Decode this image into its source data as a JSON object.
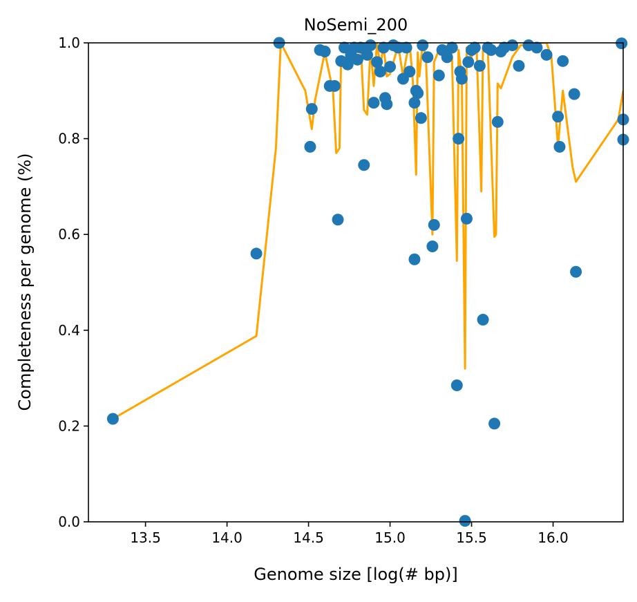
{
  "chart_data": {
    "type": "scatter",
    "title": "NoSemi_200",
    "xlabel": "Genome size [log(# bp)]",
    "ylabel": "Completeness per genome (%)",
    "xlim": [
      13.15,
      16.43
    ],
    "ylim": [
      0.0,
      1.0
    ],
    "x_ticks": [
      13.5,
      14.0,
      14.5,
      15.0,
      15.5,
      16.0
    ],
    "x_tick_labels": [
      "13.5",
      "14.0",
      "14.5",
      "15.0",
      "15.5",
      "16.0"
    ],
    "y_ticks": [
      0.0,
      0.2,
      0.4,
      0.6,
      0.8,
      1.0
    ],
    "y_tick_labels": [
      "0.0",
      "0.2",
      "0.4",
      "0.6",
      "0.8",
      "1.0"
    ],
    "grid": false,
    "legend": "none",
    "colors": {
      "points": "#1f77b4",
      "line": "#ffa500"
    },
    "points": [
      [
        13.3,
        0.215
      ],
      [
        14.18,
        0.56
      ],
      [
        14.32,
        1.0
      ],
      [
        14.51,
        0.783
      ],
      [
        14.52,
        0.862
      ],
      [
        14.57,
        0.985
      ],
      [
        14.6,
        0.982
      ],
      [
        14.63,
        0.91
      ],
      [
        14.66,
        0.91
      ],
      [
        14.68,
        0.631
      ],
      [
        14.7,
        0.962
      ],
      [
        14.72,
        0.99
      ],
      [
        14.74,
        0.955
      ],
      [
        14.76,
        0.975
      ],
      [
        14.78,
        0.99
      ],
      [
        14.8,
        0.965
      ],
      [
        14.82,
        0.99
      ],
      [
        14.84,
        0.745
      ],
      [
        14.86,
        0.975
      ],
      [
        14.88,
        0.995
      ],
      [
        14.9,
        0.875
      ],
      [
        14.92,
        0.96
      ],
      [
        14.94,
        0.94
      ],
      [
        14.96,
        0.99
      ],
      [
        14.97,
        0.885
      ],
      [
        14.98,
        0.872
      ],
      [
        15.0,
        0.95
      ],
      [
        15.02,
        0.995
      ],
      [
        15.05,
        0.99
      ],
      [
        15.08,
        0.925
      ],
      [
        15.1,
        0.99
      ],
      [
        15.12,
        0.94
      ],
      [
        15.15,
        0.548
      ],
      [
        15.15,
        0.875
      ],
      [
        15.16,
        0.9
      ],
      [
        15.17,
        0.895
      ],
      [
        15.19,
        0.843
      ],
      [
        15.2,
        0.995
      ],
      [
        15.23,
        0.97
      ],
      [
        15.26,
        0.575
      ],
      [
        15.27,
        0.62
      ],
      [
        15.3,
        0.932
      ],
      [
        15.32,
        0.985
      ],
      [
        15.35,
        0.97
      ],
      [
        15.38,
        0.99
      ],
      [
        15.41,
        0.285
      ],
      [
        15.42,
        0.8
      ],
      [
        15.43,
        0.94
      ],
      [
        15.44,
        0.925
      ],
      [
        15.46,
        0.002
      ],
      [
        15.47,
        0.633
      ],
      [
        15.48,
        0.96
      ],
      [
        15.5,
        0.985
      ],
      [
        15.52,
        0.99
      ],
      [
        15.55,
        0.952
      ],
      [
        15.57,
        0.422
      ],
      [
        15.6,
        0.99
      ],
      [
        15.62,
        0.985
      ],
      [
        15.64,
        0.205
      ],
      [
        15.66,
        0.835
      ],
      [
        15.68,
        0.982
      ],
      [
        15.7,
        0.99
      ],
      [
        15.75,
        0.995
      ],
      [
        15.79,
        0.952
      ],
      [
        15.85,
        0.995
      ],
      [
        15.9,
        0.99
      ],
      [
        15.96,
        0.975
      ],
      [
        16.03,
        0.846
      ],
      [
        16.04,
        0.783
      ],
      [
        16.06,
        0.962
      ],
      [
        16.13,
        0.893
      ],
      [
        16.14,
        0.522
      ],
      [
        16.42,
        0.999
      ],
      [
        16.43,
        0.84
      ],
      [
        16.43,
        0.798
      ]
    ],
    "line": [
      [
        13.3,
        0.215
      ],
      [
        14.18,
        0.388
      ],
      [
        14.3,
        0.78
      ],
      [
        14.33,
        1.0
      ],
      [
        14.48,
        0.9
      ],
      [
        14.52,
        0.82
      ],
      [
        14.54,
        0.88
      ],
      [
        14.6,
        0.98
      ],
      [
        14.65,
        0.9
      ],
      [
        14.67,
        0.77
      ],
      [
        14.69,
        0.78
      ],
      [
        14.7,
        0.97
      ],
      [
        14.72,
        0.95
      ],
      [
        14.74,
        0.99
      ],
      [
        14.76,
        0.98
      ],
      [
        14.78,
        1.0
      ],
      [
        14.8,
        0.98
      ],
      [
        14.82,
        0.995
      ],
      [
        14.84,
        0.86
      ],
      [
        14.86,
        0.85
      ],
      [
        14.88,
        0.99
      ],
      [
        14.9,
        0.91
      ],
      [
        14.92,
        1.0
      ],
      [
        14.94,
        0.95
      ],
      [
        14.96,
        0.995
      ],
      [
        14.98,
        0.93
      ],
      [
        15.0,
        0.935
      ],
      [
        15.05,
        0.995
      ],
      [
        15.08,
        0.93
      ],
      [
        15.1,
        0.97
      ],
      [
        15.12,
        1.0
      ],
      [
        15.14,
        0.92
      ],
      [
        15.16,
        0.725
      ],
      [
        15.17,
        0.98
      ],
      [
        15.18,
        0.93
      ],
      [
        15.2,
        1.0
      ],
      [
        15.22,
        0.97
      ],
      [
        15.26,
        0.6
      ],
      [
        15.27,
        0.96
      ],
      [
        15.3,
        0.985
      ],
      [
        15.33,
        0.97
      ],
      [
        15.36,
        1.0
      ],
      [
        15.38,
        0.97
      ],
      [
        15.41,
        0.545
      ],
      [
        15.42,
        0.985
      ],
      [
        15.44,
        0.93
      ],
      [
        15.46,
        0.32
      ],
      [
        15.47,
        0.99
      ],
      [
        15.5,
        0.97
      ],
      [
        15.53,
        1.0
      ],
      [
        15.56,
        0.69
      ],
      [
        15.57,
        0.99
      ],
      [
        15.6,
        0.985
      ],
      [
        15.64,
        0.595
      ],
      [
        15.65,
        0.6
      ],
      [
        15.66,
        0.915
      ],
      [
        15.68,
        0.905
      ],
      [
        15.75,
        0.97
      ],
      [
        15.8,
        0.995
      ],
      [
        15.85,
        0.995
      ],
      [
        15.9,
        1.0
      ],
      [
        15.96,
        1.0
      ],
      [
        15.99,
        0.97
      ],
      [
        16.03,
        0.785
      ],
      [
        16.06,
        0.9
      ],
      [
        16.12,
        0.74
      ],
      [
        16.14,
        0.71
      ],
      [
        16.4,
        0.84
      ],
      [
        16.43,
        0.9
      ]
    ]
  }
}
